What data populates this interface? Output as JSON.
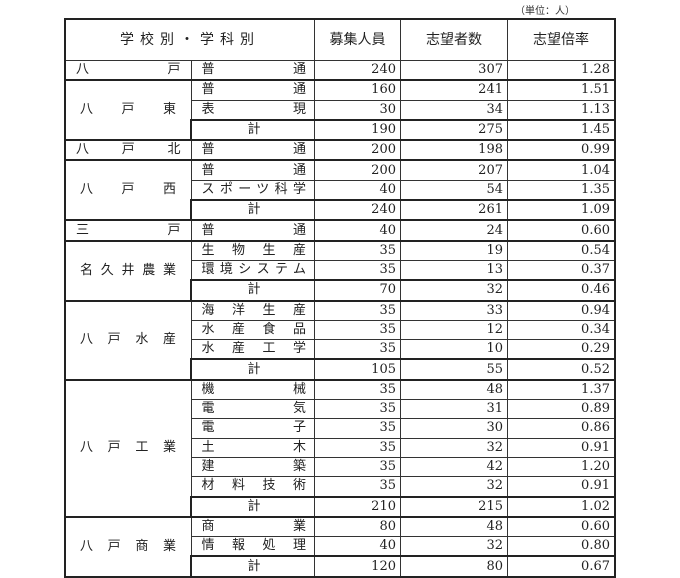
{
  "unit_label": "（単位：人）",
  "headers": {
    "school_dept": "学校別・学科別",
    "capacity": "募集人員",
    "applicants": "志望者数",
    "ratio": "志望倍率"
  },
  "total_label": "計",
  "schools": [
    {
      "name": "八戸",
      "rows": [
        [
          "普通",
          "240",
          "307",
          "1.28"
        ]
      ]
    },
    {
      "name": "八戸東",
      "rows": [
        [
          "普通",
          "160",
          "241",
          "1.51"
        ],
        [
          "表現",
          "30",
          "34",
          "1.13"
        ]
      ],
      "total": [
        "190",
        "275",
        "1.45"
      ]
    },
    {
      "name": "八戸北",
      "rows": [
        [
          "普通",
          "200",
          "198",
          "0.99"
        ]
      ]
    },
    {
      "name": "八戸西",
      "rows": [
        [
          "普通",
          "200",
          "207",
          "1.04"
        ],
        [
          "スポーツ科学",
          "40",
          "54",
          "1.35"
        ]
      ],
      "total": [
        "240",
        "261",
        "1.09"
      ]
    },
    {
      "name": "三戸",
      "rows": [
        [
          "普通",
          "40",
          "24",
          "0.60"
        ]
      ]
    },
    {
      "name": "名久井農業",
      "rows": [
        [
          "生物生産",
          "35",
          "19",
          "0.54"
        ],
        [
          "環境システム",
          "35",
          "13",
          "0.37"
        ]
      ],
      "total": [
        "70",
        "32",
        "0.46"
      ]
    },
    {
      "name": "八戸水産",
      "rows": [
        [
          "海洋生産",
          "35",
          "33",
          "0.94"
        ],
        [
          "水産食品",
          "35",
          "12",
          "0.34"
        ],
        [
          "水産工学",
          "35",
          "10",
          "0.29"
        ]
      ],
      "total": [
        "105",
        "55",
        "0.52"
      ]
    },
    {
      "name": "八戸工業",
      "rows": [
        [
          "機械",
          "35",
          "48",
          "1.37"
        ],
        [
          "電気",
          "35",
          "31",
          "0.89"
        ],
        [
          "電子",
          "35",
          "30",
          "0.86"
        ],
        [
          "土木",
          "35",
          "32",
          "0.91"
        ],
        [
          "建築",
          "35",
          "42",
          "1.20"
        ],
        [
          "材料技術",
          "35",
          "32",
          "0.91"
        ]
      ],
      "total": [
        "210",
        "215",
        "1.02"
      ]
    },
    {
      "name": "八戸商業",
      "rows": [
        [
          "商業",
          "80",
          "48",
          "0.60"
        ],
        [
          "情報処理",
          "40",
          "32",
          "0.80"
        ]
      ],
      "total": [
        "120",
        "80",
        "0.67"
      ]
    }
  ]
}
